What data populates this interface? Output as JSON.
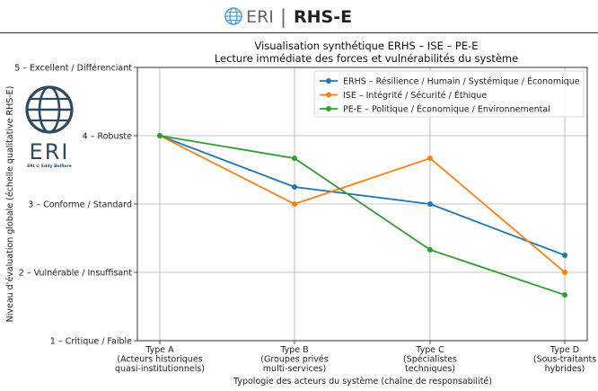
{
  "header": {
    "brand_left": "ERI",
    "separator": "|",
    "brand_right": "RHS-E",
    "icon": "globe-icon"
  },
  "logo": {
    "icon": "globe-icon",
    "text": "ERI",
    "subtext": "ERI © Eddy Belfiore"
  },
  "chart_data": {
    "type": "line",
    "title": "Visualisation synthétique  ERHS – ISE – PE-E",
    "subtitle": "Lecture immédiate des forces et vulnérabilités du système",
    "xlabel": "Typologie des acteurs du système (chaîne de responsabilité)",
    "ylabel": "Niveau d'évaluation globale (échelle qualitative RHS-E)",
    "ylim": [
      1,
      5
    ],
    "grid": true,
    "legend_position": "top-right",
    "categories": [
      [
        "Type A",
        "(Acteurs historiques",
        "quasi-institutionnels)"
      ],
      [
        "Type B",
        "(Groupes privés",
        "multi-services)"
      ],
      [
        "Type C",
        "(Spécialistes",
        "techniques)"
      ],
      [
        "Type D",
        "(Sous-traitants",
        "hybrides)"
      ]
    ],
    "y_ticks": [
      {
        "value": 1,
        "label": "1 – Critique / Faible"
      },
      {
        "value": 2,
        "label": "2 – Vulnérable / Insuffisant"
      },
      {
        "value": 3,
        "label": "3 – Conforme / Standard"
      },
      {
        "value": 4,
        "label": "4 – Robuste"
      },
      {
        "value": 5,
        "label": "5 – Excellent / Différenciant"
      }
    ],
    "series": [
      {
        "name": "ERHS – Résilience / Humain / Systémique / Économique",
        "color": "#1f77b4",
        "values": [
          4.0,
          3.25,
          3.0,
          2.25
        ]
      },
      {
        "name": "ISE – Intégrité / Sécurité / Éthique",
        "color": "#ff7f0e",
        "values": [
          4.0,
          3.0,
          3.67,
          2.0
        ]
      },
      {
        "name": "PE-E – Politique / Économique / Environnemental",
        "color": "#2ca02c",
        "values": [
          4.0,
          3.67,
          2.33,
          1.67
        ]
      }
    ]
  }
}
